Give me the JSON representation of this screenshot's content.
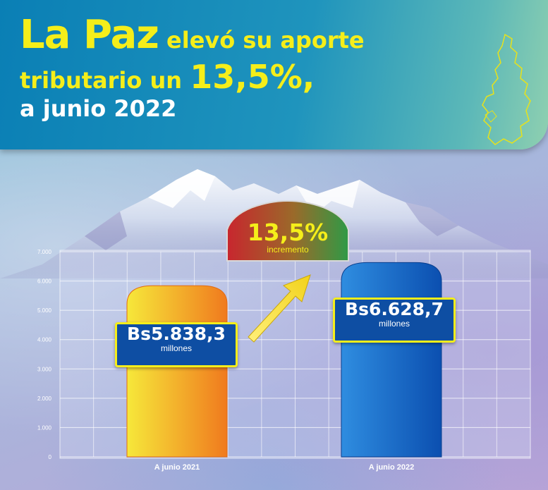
{
  "header": {
    "title_part1": "La Paz",
    "title_part2": "elevó su aporte",
    "title_part3": "tributario un",
    "title_part4": "13,5%,",
    "title_part5": "a junio 2022"
  },
  "increment": {
    "value": "13,5%",
    "label": "incremento"
  },
  "colors": {
    "title_yellow": "#f5ee1a",
    "header_blue": "#0a7fb5",
    "bar_2021": "#f08a24",
    "bar_2022": "#1462c2",
    "badge_blue": "#0e4ea3"
  },
  "chart_data": {
    "type": "bar",
    "categories": [
      "A junio 2021",
      "A junio 2022"
    ],
    "values": [
      5838.3,
      6628.7
    ],
    "value_labels": [
      "Bs5.838,3",
      "Bs6.628,7"
    ],
    "unit_label": "millones",
    "yticks": [
      "0",
      "1.000",
      "2.000",
      "3.000",
      "4.000",
      "5.000",
      "6.000",
      "7.000"
    ],
    "ylim": [
      0,
      7000
    ],
    "grid": true
  }
}
